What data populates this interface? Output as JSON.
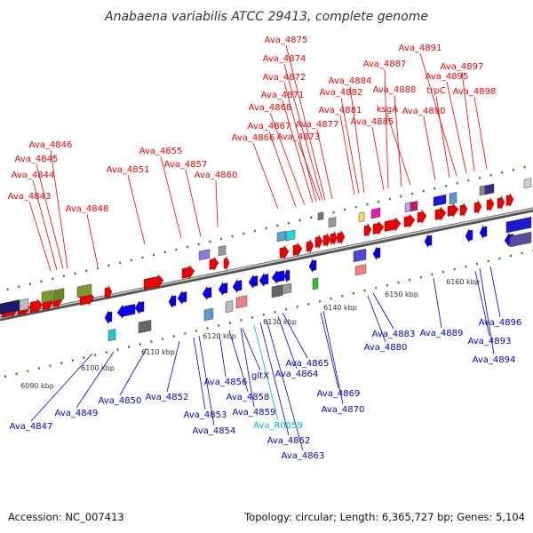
{
  "title": "Anabaena variabilis ATCC 29413, complete genome",
  "footer": {
    "accession": "Accession: NC_007413",
    "summary": "Topology: circular; Length: 6,365,727 bp; Genes: 5,104"
  },
  "colors": {
    "forward_label": "#ee0000",
    "reverse_label": "#0000cc",
    "rna_label": "#00b4d8",
    "forward_gene": "#ee0000",
    "reverse_gene": "#0000ee",
    "backbone": "#888888",
    "tick": "#1f8f1f"
  },
  "scale_labels": [
    "6090 kbp",
    "6100 kbp",
    "6110 kbp",
    "6120 kbp",
    "6130 kbp",
    "6140 kbp",
    "6150 kbp",
    "6160 kbp"
  ],
  "forward_labels": [
    "Ava_4843",
    "Ava_4844",
    "Ava_4845",
    "Ava_4846",
    "Ava_4848",
    "Ava_4851",
    "Ava_4855",
    "Ava_4857",
    "Ava_4860",
    "Ava_4866",
    "Ava_4867",
    "Ava_4868",
    "Ava_4871",
    "Ava_4872",
    "Ava_4873",
    "Ava_4874",
    "Ava_4875",
    "Ava_4877",
    "Ava_4881",
    "Ava_4882",
    "Ava_4884",
    "Ava_4885",
    "Ava_4887",
    "Ava_4888",
    "ksgA",
    "Ava_4890",
    "trpC",
    "Ava_4891",
    "Ava_4895",
    "Ava_4897",
    "Ava_4898"
  ],
  "reverse_labels": [
    "Ava_4847",
    "Ava_4849",
    "Ava_4850",
    "Ava_4852",
    "Ava_4853",
    "Ava_4854",
    "Ava_4856",
    "Ava_4858",
    "gltX",
    "Ava_4859",
    "Ava_R0059",
    "Ava_4862",
    "Ava_4863",
    "Ava_4864",
    "Ava_4865",
    "Ava_4869",
    "Ava_4870",
    "Ava_4880",
    "Ava_4883",
    "Ava_4889",
    "Ava_4893",
    "Ava_4894",
    "Ava_4896"
  ]
}
